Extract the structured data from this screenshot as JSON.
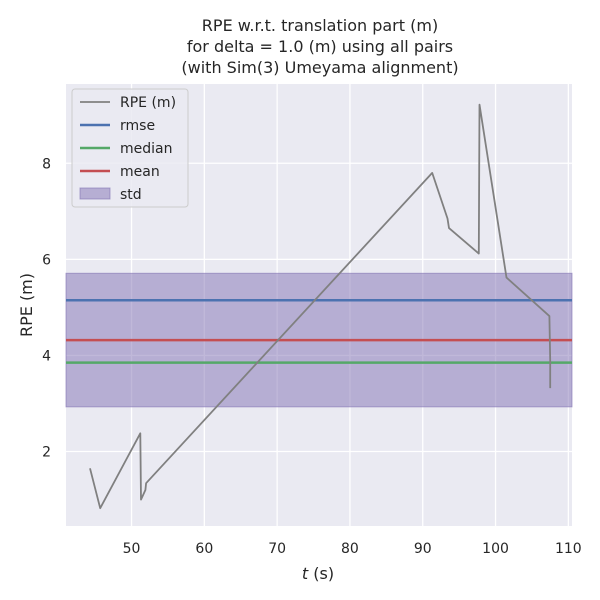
{
  "chart_data": {
    "type": "line",
    "title_lines": [
      "RPE w.r.t. translation part (m)",
      "for delta = 1.0 (m) using all pairs",
      "(with Sim(3) Umeyama alignment)"
    ],
    "xlabel_italic": "t",
    "xlabel_rest": " (s)",
    "ylabel": "RPE (m)",
    "xlim": [
      41,
      110.5
    ],
    "ylim": [
      0.45,
      9.65
    ],
    "xticks": [
      50,
      60,
      70,
      80,
      90,
      100,
      110
    ],
    "yticks": [
      2,
      4,
      6,
      8
    ],
    "grid": true,
    "legend_position": "top-left",
    "series": [
      {
        "name": "RPE (m)",
        "type": "line",
        "color": "#808080",
        "x": [
          44.3,
          45.7,
          51.2,
          51.3,
          51.9,
          52.0,
          91.3,
          93.4,
          93.6,
          97.7,
          97.8,
          101.5,
          107.4,
          107.5,
          107.5
        ],
        "y": [
          1.65,
          0.82,
          2.38,
          1.0,
          1.2,
          1.34,
          7.8,
          6.85,
          6.65,
          6.12,
          9.22,
          5.62,
          4.82,
          3.9,
          3.32
        ]
      }
    ],
    "stats": {
      "rmse": 5.15,
      "median": 3.85,
      "mean": 4.32,
      "std_band": [
        2.93,
        5.71
      ]
    },
    "legend": [
      {
        "label": "RPE (m)",
        "kind": "line",
        "color": "#808080"
      },
      {
        "label": "rmse",
        "kind": "line",
        "color": "#4c72b0"
      },
      {
        "label": "median",
        "kind": "line",
        "color": "#55a868"
      },
      {
        "label": "mean",
        "kind": "line",
        "color": "#c44e52"
      },
      {
        "label": "std",
        "kind": "patch",
        "color": "#8172b3"
      }
    ],
    "colors": {
      "plot_bg": "#eaeaf2",
      "grid": "#ffffff",
      "rmse": "#4c72b0",
      "median": "#55a868",
      "mean": "#c44e52",
      "std": "#8172b3",
      "rpe": "#808080"
    }
  }
}
